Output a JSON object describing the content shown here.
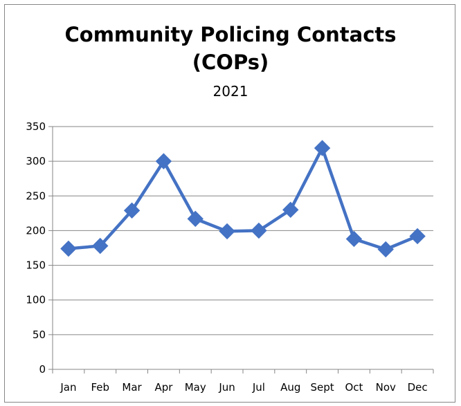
{
  "chart_data": {
    "type": "line",
    "title": "Community Policing Contacts (COPs)",
    "title_lines": [
      "Community Policing Contacts",
      "(COPs)"
    ],
    "subtitle": "2021",
    "categories": [
      "Jan",
      "Feb",
      "Mar",
      "Apr",
      "May",
      "Jun",
      "Jul",
      "Aug",
      "Sept",
      "Oct",
      "Nov",
      "Dec"
    ],
    "values": [
      174,
      178,
      229,
      300,
      217,
      199,
      200,
      230,
      319,
      188,
      173,
      192
    ],
    "yticks": [
      0,
      50,
      100,
      150,
      200,
      250,
      300,
      350
    ],
    "ylim": [
      0,
      350
    ],
    "xlabel": "",
    "ylabel": "",
    "grid": true,
    "legend": "none",
    "series_color": "#4472C4",
    "grid_color": "#868686"
  }
}
